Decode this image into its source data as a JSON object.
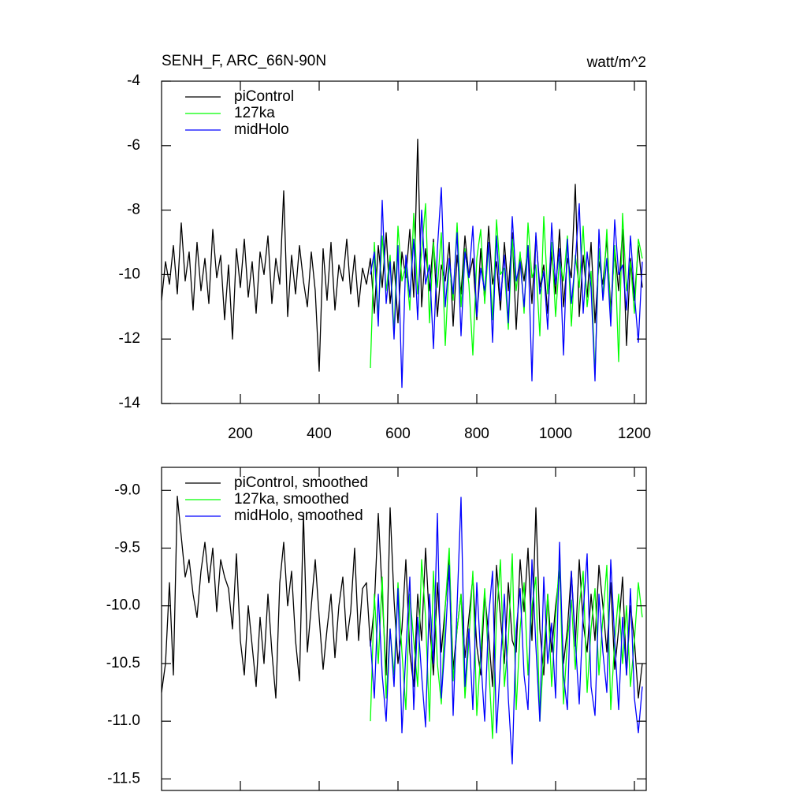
{
  "chart_data": [
    {
      "type": "line",
      "title": "SENH_F, ARC_66N-90N",
      "units": "watt/m^2",
      "xlim": [
        0,
        1230
      ],
      "xticks": [
        200,
        400,
        600,
        800,
        1000,
        1200
      ],
      "ylim": [
        -14,
        -4
      ],
      "yticks": [
        -14,
        -12,
        -10,
        -8,
        -6,
        -4
      ],
      "x": [
        0,
        10,
        20,
        30,
        40,
        50,
        60,
        70,
        80,
        90,
        100,
        110,
        120,
        130,
        140,
        150,
        160,
        170,
        180,
        190,
        200,
        210,
        220,
        230,
        240,
        250,
        260,
        270,
        280,
        290,
        300,
        310,
        320,
        330,
        340,
        350,
        360,
        370,
        380,
        390,
        400,
        410,
        420,
        430,
        440,
        450,
        460,
        470,
        480,
        490,
        500,
        510,
        520,
        530,
        540,
        550,
        560,
        570,
        580,
        590,
        600,
        610,
        620,
        630,
        640,
        650,
        660,
        670,
        680,
        690,
        700,
        710,
        720,
        730,
        740,
        750,
        760,
        770,
        780,
        790,
        800,
        810,
        820,
        830,
        840,
        850,
        860,
        870,
        880,
        890,
        900,
        910,
        920,
        930,
        940,
        950,
        960,
        970,
        980,
        990,
        1000,
        1010,
        1020,
        1030,
        1040,
        1050,
        1060,
        1070,
        1080,
        1090,
        1100,
        1110,
        1120,
        1130,
        1140,
        1150,
        1160,
        1170,
        1180,
        1190,
        1200,
        1210,
        1220
      ],
      "series": [
        {
          "name": "piControl",
          "color": "#000000",
          "values": [
            -10.8,
            -9.6,
            -10.3,
            -9.1,
            -10.6,
            -8.4,
            -10.2,
            -9.3,
            -11.1,
            -9.0,
            -10.5,
            -9.5,
            -10.9,
            -8.6,
            -10.1,
            -9.4,
            -11.4,
            -9.7,
            -12.0,
            -9.2,
            -10.4,
            -8.9,
            -10.7,
            -9.6,
            -11.2,
            -9.3,
            -10.0,
            -8.8,
            -10.9,
            -9.5,
            -10.3,
            -7.4,
            -11.3,
            -9.4,
            -10.6,
            -9.1,
            -10.2,
            -11.0,
            -9.3,
            -10.5,
            -13.0,
            -9.2,
            -10.8,
            -9.0,
            -11.1,
            -9.7,
            -10.2,
            -8.9,
            -10.6,
            -9.4,
            -11.0,
            -9.8,
            -10.3,
            -9.5,
            -11.2,
            -9.1,
            -10.4,
            -8.7,
            -10.9,
            -9.6,
            -11.5,
            -9.3,
            -10.1,
            -8.6,
            -10.7,
            -5.8,
            -11.0,
            -9.2,
            -10.5,
            -8.9,
            -11.3,
            -9.7,
            -10.2,
            -9.0,
            -11.6,
            -9.4,
            -10.6,
            -8.8,
            -10.1,
            -9.5,
            -11.4,
            -9.2,
            -10.8,
            -8.5,
            -10.3,
            -9.6,
            -11.1,
            -9.0,
            -10.5,
            -8.7,
            -11.7,
            -9.4,
            -10.2,
            -9.1,
            -10.9,
            -8.8,
            -10.4,
            -9.7,
            -11.2,
            -9.3,
            -10.6,
            -8.6,
            -11.0,
            -9.5,
            -10.1,
            -7.2,
            -11.3,
            -9.4,
            -10.7,
            -9.0,
            -11.5,
            -9.6,
            -10.3,
            -8.9,
            -11.1,
            -9.2,
            -10.5,
            -8.6,
            -12.2,
            -9.5,
            -10.8,
            -9.1,
            -10.4
          ]
        },
        {
          "name": "127ka",
          "color": "#00ff00",
          "values": [
            null,
            null,
            null,
            null,
            null,
            null,
            null,
            null,
            null,
            null,
            null,
            null,
            null,
            null,
            null,
            null,
            null,
            null,
            null,
            null,
            null,
            null,
            null,
            null,
            null,
            null,
            null,
            null,
            null,
            null,
            null,
            null,
            null,
            null,
            null,
            null,
            null,
            null,
            null,
            null,
            null,
            null,
            null,
            null,
            null,
            null,
            null,
            null,
            null,
            null,
            null,
            null,
            null,
            -12.9,
            -9.0,
            -11.3,
            -8.8,
            -10.5,
            -9.4,
            -11.8,
            -8.5,
            -10.2,
            -9.7,
            -11.1,
            -8.1,
            -10.6,
            -9.3,
            -7.8,
            -11.5,
            -9.0,
            -10.4,
            -8.7,
            -12.2,
            -9.6,
            -10.8,
            -8.4,
            -11.0,
            -9.2,
            -10.3,
            -12.5,
            -9.5,
            -8.6,
            -10.9,
            -9.1,
            -11.4,
            -8.3,
            -10.0,
            -9.8,
            -11.7,
            -8.9,
            -10.5,
            -9.3,
            -11.2,
            -8.4,
            -10.1,
            -9.7,
            -11.9,
            -8.2,
            -10.6,
            -9.0,
            -11.3,
            -9.5,
            -10.2,
            -8.8,
            -11.6,
            -9.4,
            -10.4,
            -8.5,
            -11.0,
            -9.9,
            -13.1,
            -9.2,
            -10.7,
            -8.6,
            -11.4,
            -9.1,
            -12.7,
            -8.1,
            -10.5,
            -9.6,
            -11.2,
            -8.9,
            -9.5
          ]
        },
        {
          "name": "midHolo",
          "color": "#0000ff",
          "values": [
            null,
            null,
            null,
            null,
            null,
            null,
            null,
            null,
            null,
            null,
            null,
            null,
            null,
            null,
            null,
            null,
            null,
            null,
            null,
            null,
            null,
            null,
            null,
            null,
            null,
            null,
            null,
            null,
            null,
            null,
            null,
            null,
            null,
            null,
            null,
            null,
            null,
            null,
            null,
            null,
            null,
            null,
            null,
            null,
            null,
            null,
            null,
            null,
            null,
            null,
            null,
            null,
            null,
            -10.0,
            -9.3,
            -11.6,
            -7.7,
            -10.9,
            -9.6,
            -12.0,
            -9.1,
            -13.5,
            -9.4,
            -10.7,
            -8.9,
            -11.4,
            -8.0,
            -10.3,
            -9.7,
            -12.3,
            -9.2,
            -7.3,
            -11.0,
            -9.5,
            -10.6,
            -8.7,
            -11.9,
            -9.3,
            -10.1,
            -8.5,
            -11.3,
            -9.8,
            -10.5,
            -9.0,
            -12.1,
            -8.8,
            -10.8,
            -9.4,
            -11.5,
            -8.2,
            -10.2,
            -9.6,
            -11.0,
            -9.1,
            -13.3,
            -8.7,
            -10.6,
            -9.9,
            -11.7,
            -8.4,
            -10.3,
            -9.2,
            -12.5,
            -8.9,
            -10.9,
            -9.6,
            -7.8,
            -11.2,
            -9.3,
            -10.4,
            -13.3,
            -8.6,
            -10.8,
            -9.5,
            -11.6,
            -8.3,
            -10.0,
            -9.7,
            -11.1,
            -8.8,
            -10.6,
            -12.1,
            -9.6
          ]
        }
      ]
    },
    {
      "type": "line",
      "xlim": [
        0,
        1230
      ],
      "xticks": [
        200,
        400,
        600,
        800,
        1000,
        1200
      ],
      "xticklabels": false,
      "ylim": [
        -11.6,
        -8.8
      ],
      "yticks": [
        {
          "value": -11.5,
          "label": "-11.5"
        },
        {
          "value": -11,
          "label": "-11.0"
        },
        {
          "value": -10.5,
          "label": "-10.5"
        },
        {
          "value": -10,
          "label": "-10.0"
        },
        {
          "value": -9.5,
          "label": "-9.5"
        },
        {
          "value": -9,
          "label": "-9.0"
        }
      ],
      "x": [
        0,
        10,
        20,
        30,
        40,
        50,
        60,
        70,
        80,
        90,
        100,
        110,
        120,
        130,
        140,
        150,
        160,
        170,
        180,
        190,
        200,
        210,
        220,
        230,
        240,
        250,
        260,
        270,
        280,
        290,
        300,
        310,
        320,
        330,
        340,
        350,
        360,
        370,
        380,
        390,
        400,
        410,
        420,
        430,
        440,
        450,
        460,
        470,
        480,
        490,
        500,
        510,
        520,
        530,
        540,
        550,
        560,
        570,
        580,
        590,
        600,
        610,
        620,
        630,
        640,
        650,
        660,
        670,
        680,
        690,
        700,
        710,
        720,
        730,
        740,
        750,
        760,
        770,
        780,
        790,
        800,
        810,
        820,
        830,
        840,
        850,
        860,
        870,
        880,
        890,
        900,
        910,
        920,
        930,
        940,
        950,
        960,
        970,
        980,
        990,
        1000,
        1010,
        1020,
        1030,
        1040,
        1050,
        1060,
        1070,
        1080,
        1090,
        1100,
        1110,
        1120,
        1130,
        1140,
        1150,
        1160,
        1170,
        1180,
        1190,
        1200,
        1210,
        1220
      ],
      "series": [
        {
          "name": "piControl, smoothed",
          "color": "#000000",
          "values": [
            -10.75,
            -10.5,
            -9.8,
            -10.6,
            -9.05,
            -9.4,
            -9.75,
            -9.6,
            -9.9,
            -10.1,
            -9.7,
            -9.45,
            -9.8,
            -9.5,
            -10.05,
            -9.6,
            -9.75,
            -9.85,
            -10.2,
            -9.55,
            -10.3,
            -10.6,
            -10.0,
            -10.35,
            -10.7,
            -10.1,
            -10.5,
            -9.9,
            -10.4,
            -10.8,
            -9.8,
            -9.45,
            -10.0,
            -9.7,
            -10.3,
            -10.65,
            -9.2,
            -10.4,
            -10.0,
            -9.6,
            -10.1,
            -10.55,
            -10.2,
            -9.9,
            -10.45,
            -10.0,
            -9.75,
            -10.3,
            -10.05,
            -9.5,
            -10.3,
            -9.85,
            -9.8,
            -10.35,
            -10.0,
            -9.2,
            -9.9,
            -10.6,
            -9.15,
            -9.95,
            -10.5,
            -10.2,
            -9.6,
            -10.4,
            -10.7,
            -9.9,
            -10.3,
            -9.5,
            -10.15,
            -10.6,
            -9.8,
            -10.4,
            -10.0,
            -9.6,
            -10.55,
            -10.2,
            -9.9,
            -10.45,
            -10.1,
            -9.75,
            -10.35,
            -10.6,
            -9.9,
            -10.25,
            -10.7,
            -9.65,
            -10.1,
            -10.5,
            -9.8,
            -10.3,
            -10.4,
            -9.6,
            -10.05,
            -9.5,
            -10.3,
            -9.15,
            -10.2,
            -10.6,
            -9.9,
            -10.4,
            -10.0,
            -9.7,
            -10.5,
            -10.2,
            -9.7,
            -10.35,
            -9.6,
            -10.15,
            -10.4,
            -9.9,
            -10.3,
            -9.65,
            -10.0,
            -10.4,
            -9.8,
            -10.55,
            -10.2,
            -9.75,
            -10.6,
            -10.0,
            -10.3,
            -10.8,
            -10.5
          ]
        },
        {
          "name": "127ka, smoothed",
          "color": "#00ff00",
          "values": [
            null,
            null,
            null,
            null,
            null,
            null,
            null,
            null,
            null,
            null,
            null,
            null,
            null,
            null,
            null,
            null,
            null,
            null,
            null,
            null,
            null,
            null,
            null,
            null,
            null,
            null,
            null,
            null,
            null,
            null,
            null,
            null,
            null,
            null,
            null,
            null,
            null,
            null,
            null,
            null,
            null,
            null,
            null,
            null,
            null,
            null,
            null,
            null,
            null,
            null,
            null,
            null,
            null,
            -11.0,
            -9.9,
            -10.5,
            -9.75,
            -10.8,
            -10.2,
            -10.6,
            -9.8,
            -10.4,
            -10.9,
            -9.9,
            -10.3,
            -10.7,
            -9.6,
            -10.1,
            -11.0,
            -9.7,
            -10.5,
            -10.85,
            -10.0,
            -9.5,
            -10.65,
            -10.2,
            -9.9,
            -10.8,
            -10.3,
            -9.7,
            -10.95,
            -10.4,
            -9.85,
            -10.5,
            -11.15,
            -10.1,
            -9.6,
            -10.7,
            -10.3,
            -9.55,
            -10.9,
            -10.2,
            -9.8,
            -10.6,
            -10.0,
            -9.75,
            -11.0,
            -10.4,
            -9.9,
            -10.7,
            -10.1,
            -9.6,
            -10.85,
            -10.3,
            -9.95,
            -10.55,
            -10.0,
            -9.7,
            -10.75,
            -10.2,
            -9.85,
            -10.6,
            -10.1,
            -9.65,
            -10.9,
            -10.3,
            -9.9,
            -10.5,
            -10.0,
            -10.7,
            -10.3,
            -9.8,
            -10.1
          ]
        },
        {
          "name": "midHolo, smoothed",
          "color": "#0000ff",
          "values": [
            null,
            null,
            null,
            null,
            null,
            null,
            null,
            null,
            null,
            null,
            null,
            null,
            null,
            null,
            null,
            null,
            null,
            null,
            null,
            null,
            null,
            null,
            null,
            null,
            null,
            null,
            null,
            null,
            null,
            null,
            null,
            null,
            null,
            null,
            null,
            null,
            null,
            null,
            null,
            null,
            null,
            null,
            null,
            null,
            null,
            null,
            null,
            null,
            null,
            null,
            null,
            null,
            null,
            -10.3,
            -10.8,
            -9.9,
            -10.6,
            -11.0,
            -10.2,
            -10.7,
            -9.85,
            -11.1,
            -10.4,
            -9.75,
            -10.9,
            -10.1,
            -10.6,
            -11.05,
            -9.9,
            -10.5,
            -9.2,
            -10.8,
            -10.3,
            -9.65,
            -10.95,
            -10.0,
            -9.06,
            -10.7,
            -10.2,
            -10.9,
            -9.8,
            -10.45,
            -11.0,
            -10.1,
            -9.7,
            -11.1,
            -10.5,
            -9.9,
            -10.8,
            -11.37,
            -10.2,
            -9.85,
            -10.6,
            -10.9,
            -9.6,
            -10.35,
            -11.0,
            -9.75,
            -10.5,
            -10.15,
            -10.8,
            -9.45,
            -10.6,
            -10.9,
            -9.7,
            -10.3,
            -10.85,
            -10.05,
            -9.55,
            -10.7,
            -10.95,
            -9.9,
            -10.4,
            -10.75,
            -9.6,
            -10.3,
            -10.9,
            -10.1,
            -10.6,
            -9.85,
            -10.8,
            -11.1,
            -10.7
          ]
        }
      ]
    }
  ]
}
